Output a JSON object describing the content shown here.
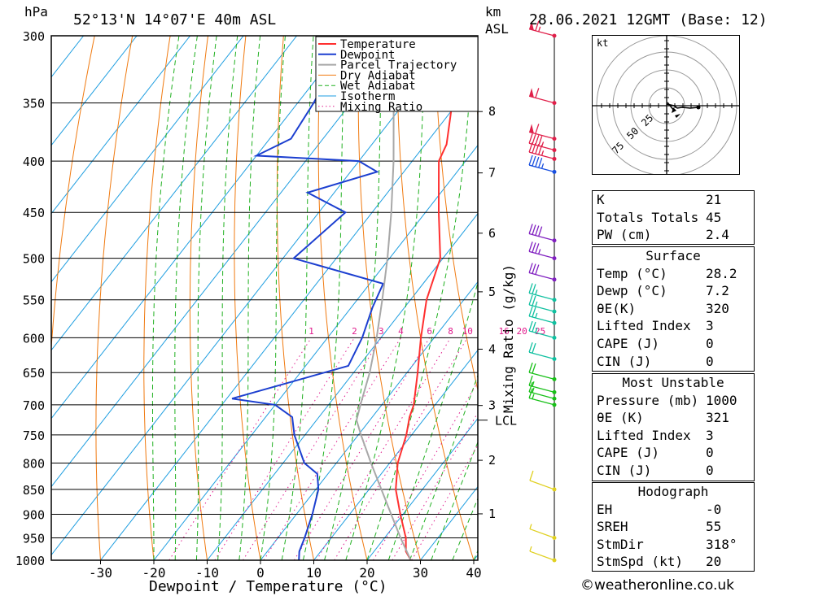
{
  "header": {
    "pressure_unit": "hPa",
    "location": "52°13'N  14°07'E  40m  ASL",
    "km_label": "km",
    "asl_label": "ASL",
    "date": "28.06.2021  12GMT  (Base: 12)"
  },
  "chart_data": {
    "type": "skew-t",
    "xlabel": "Dewpoint / Temperature (°C)",
    "y2label": "Mixing Ratio (g/kg)",
    "pressure_levels": [
      300,
      350,
      400,
      450,
      500,
      550,
      600,
      650,
      700,
      750,
      800,
      850,
      900,
      950,
      1000
    ],
    "temperature_ticks": [
      -30,
      -20,
      -10,
      0,
      10,
      20,
      30,
      40
    ],
    "xlim": [
      -40,
      40
    ],
    "ylim_hpa": [
      1000,
      300
    ],
    "height_km_ticks": [
      1,
      2,
      3,
      4,
      5,
      6,
      7,
      8
    ],
    "lcl_label": "LCL",
    "lcl_pressure": 725,
    "mixing_ratio_labels": [
      "1",
      "2",
      "3",
      "4",
      "6",
      "8",
      "10",
      "16",
      "20",
      "25"
    ],
    "legend": [
      "Temperature",
      "Dewpoint",
      "Parcel Trajectory",
      "Dry Adiabat",
      "Wet Adiabat",
      "Isotherm",
      "Mixing Ratio"
    ],
    "colors": {
      "temperature": "#ff3030",
      "dewpoint": "#1c3fd0",
      "parcel": "#a8a8a8",
      "dry_adiabat": "#f07a10",
      "wet_adiabat": "#20b020",
      "isotherm": "#1e9ee0",
      "mixing_ratio": "#e01a8c"
    },
    "series": [
      {
        "name": "Temperature",
        "points": [
          [
            1000,
            28.2
          ],
          [
            980,
            26.0
          ],
          [
            950,
            24.0
          ],
          [
            900,
            19.5
          ],
          [
            850,
            15.0
          ],
          [
            800,
            11.5
          ],
          [
            750,
            9.0
          ],
          [
            720,
            7.0
          ],
          [
            700,
            6.0
          ],
          [
            650,
            2.0
          ],
          [
            600,
            -2.5
          ],
          [
            550,
            -7.0
          ],
          [
            500,
            -10.5
          ],
          [
            450,
            -17.5
          ],
          [
            400,
            -25.0
          ],
          [
            385,
            -26.0
          ],
          [
            350,
            -31.0
          ],
          [
            300,
            -40.0
          ]
        ]
      },
      {
        "name": "Dewpoint",
        "points": [
          [
            1000,
            7.2
          ],
          [
            980,
            6.0
          ],
          [
            950,
            5.0
          ],
          [
            900,
            3.0
          ],
          [
            850,
            0.5
          ],
          [
            820,
            -2.0
          ],
          [
            800,
            -6.0
          ],
          [
            750,
            -12.0
          ],
          [
            720,
            -15.0
          ],
          [
            700,
            -20.0
          ],
          [
            690,
            -29.0
          ],
          [
            640,
            -12.0
          ],
          [
            600,
            -13.5
          ],
          [
            560,
            -16.0
          ],
          [
            530,
            -17.5
          ],
          [
            500,
            -38.0
          ],
          [
            450,
            -35.0
          ],
          [
            430,
            -45.0
          ],
          [
            410,
            -35.0
          ],
          [
            400,
            -40.0
          ],
          [
            395,
            -60.0
          ],
          [
            380,
            -56.0
          ],
          [
            350,
            -57.0
          ],
          [
            300,
            -60.0
          ]
        ]
      },
      {
        "name": "Parcel Trajectory",
        "points": [
          [
            1000,
            28.2
          ],
          [
            950,
            23.0
          ],
          [
            900,
            17.8
          ],
          [
            850,
            12.3
          ],
          [
            800,
            6.5
          ],
          [
            750,
            0.5
          ],
          [
            725,
            -2.5
          ],
          [
            700,
            -4.0
          ],
          [
            650,
            -7.0
          ],
          [
            600,
            -10.8
          ],
          [
            550,
            -15.3
          ],
          [
            500,
            -20.4
          ],
          [
            450,
            -26.4
          ],
          [
            400,
            -33.5
          ],
          [
            350,
            -42.0
          ],
          [
            300,
            -52.0
          ]
        ]
      }
    ],
    "wind_barbs": [
      {
        "pressure": 1000,
        "speed_kt": 5
      },
      {
        "pressure": 950,
        "speed_kt": 5
      },
      {
        "pressure": 850,
        "speed_kt": 10
      },
      {
        "pressure": 700,
        "speed_kt": 15
      },
      {
        "pressure": 690,
        "speed_kt": 15
      },
      {
        "pressure": 680,
        "speed_kt": 15
      },
      {
        "pressure": 660,
        "speed_kt": 20
      },
      {
        "pressure": 630,
        "speed_kt": 20
      },
      {
        "pressure": 600,
        "speed_kt": 25
      },
      {
        "pressure": 580,
        "speed_kt": 25
      },
      {
        "pressure": 565,
        "speed_kt": 25
      },
      {
        "pressure": 550,
        "speed_kt": 25
      },
      {
        "pressure": 525,
        "speed_kt": 30
      },
      {
        "pressure": 500,
        "speed_kt": 35
      },
      {
        "pressure": 480,
        "speed_kt": 40
      },
      {
        "pressure": 410,
        "speed_kt": 45
      },
      {
        "pressure": 398,
        "speed_kt": 45
      },
      {
        "pressure": 390,
        "speed_kt": 45
      },
      {
        "pressure": 380,
        "speed_kt": 60
      },
      {
        "pressure": 350,
        "speed_kt": 60
      },
      {
        "pressure": 300,
        "speed_kt": 65
      }
    ]
  },
  "hodograph": {
    "unit_label": "kt",
    "ring_labels": [
      "25",
      "50",
      "75"
    ]
  },
  "indices": {
    "rows": [
      {
        "label": "K",
        "value": "21"
      },
      {
        "label": "Totals Totals",
        "value": "45"
      },
      {
        "label": "PW (cm)",
        "value": "2.4"
      }
    ]
  },
  "surface": {
    "title": "Surface",
    "rows": [
      {
        "label": "Temp (°C)",
        "value": "28.2"
      },
      {
        "label": "Dewp (°C)",
        "value": "7.2"
      },
      {
        "label": "θE(K)",
        "value": "320"
      },
      {
        "label": "Lifted Index",
        "value": "3"
      },
      {
        "label": "CAPE (J)",
        "value": "0"
      },
      {
        "label": "CIN (J)",
        "value": "0"
      }
    ]
  },
  "most_unstable": {
    "title": "Most Unstable",
    "rows": [
      {
        "label": "Pressure (mb)",
        "value": "1000"
      },
      {
        "label": "θE (K)",
        "value": "321"
      },
      {
        "label": "Lifted Index",
        "value": "3"
      },
      {
        "label": "CAPE (J)",
        "value": "0"
      },
      {
        "label": "CIN (J)",
        "value": "0"
      }
    ]
  },
  "hodograph_stats": {
    "title": "Hodograph",
    "rows": [
      {
        "label": "EH",
        "value": "-0"
      },
      {
        "label": "SREH",
        "value": "55"
      },
      {
        "label": "StmDir",
        "value": "318°"
      },
      {
        "label": "StmSpd (kt)",
        "value": "20"
      }
    ]
  },
  "credit": "©weatheronline.co.uk"
}
